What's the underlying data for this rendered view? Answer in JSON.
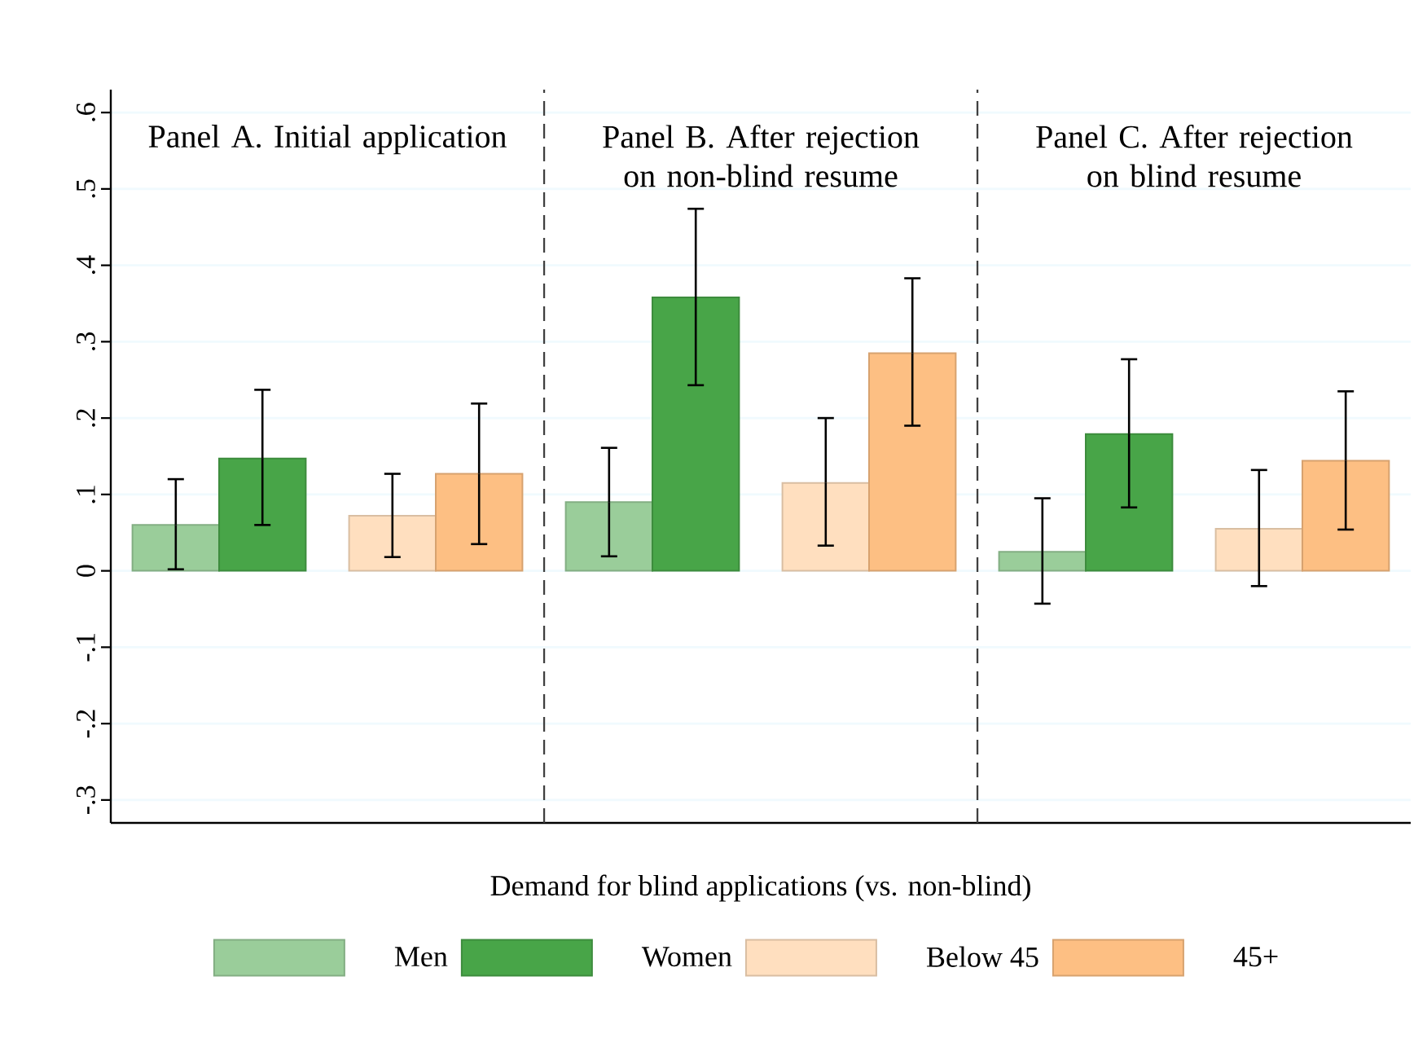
{
  "chart_data": {
    "type": "bar",
    "xlabel": "Demand for blind applications (vs. non-blind)",
    "categories": [
      "Panel A. Initial application",
      "Panel B. After rejection on non-blind resume",
      "Panel C. After rejection on blind resume"
    ],
    "ylim": [
      -0.33,
      0.63
    ],
    "yticks": [
      {
        "value": -0.3,
        "label": "-.3"
      },
      {
        "value": -0.2,
        "label": "-.2"
      },
      {
        "value": -0.1,
        "label": "-.1"
      },
      0,
      {
        "value": 0.1,
        "label": ".1"
      },
      {
        "value": 0.2,
        "label": ".2"
      },
      {
        "value": 0.3,
        "label": ".3"
      },
      {
        "value": 0.4,
        "label": ".4"
      },
      {
        "value": 0.5,
        "label": ".5"
      },
      {
        "value": 0.6,
        "label": ".6"
      }
    ],
    "grid": "y",
    "legend": "bottom",
    "series": [
      {
        "name": "Men",
        "color": "#9acd9a",
        "values": [
          0.06,
          0.09,
          0.025
        ],
        "errors": [
          [
            0.002,
            0.12
          ],
          [
            0.019,
            0.161
          ],
          [
            -0.043,
            0.095
          ]
        ]
      },
      {
        "name": "Women",
        "color": "#48a548",
        "values": [
          0.147,
          0.358,
          0.179
        ],
        "errors": [
          [
            0.06,
            0.237
          ],
          [
            0.243,
            0.474
          ],
          [
            0.083,
            0.277
          ]
        ]
      },
      {
        "name": "Below 45",
        "color": "#ffdfbf",
        "values": [
          0.072,
          0.115,
          0.055
        ],
        "errors": [
          [
            0.018,
            0.127
          ],
          [
            0.033,
            0.2
          ],
          [
            -0.02,
            0.132
          ]
        ]
      },
      {
        "name": "45+",
        "color": "#fdbf83",
        "values": [
          0.127,
          0.285,
          0.144
        ],
        "errors": [
          [
            0.035,
            0.219
          ],
          [
            0.19,
            0.383
          ],
          [
            0.054,
            0.235
          ]
        ]
      }
    ]
  }
}
